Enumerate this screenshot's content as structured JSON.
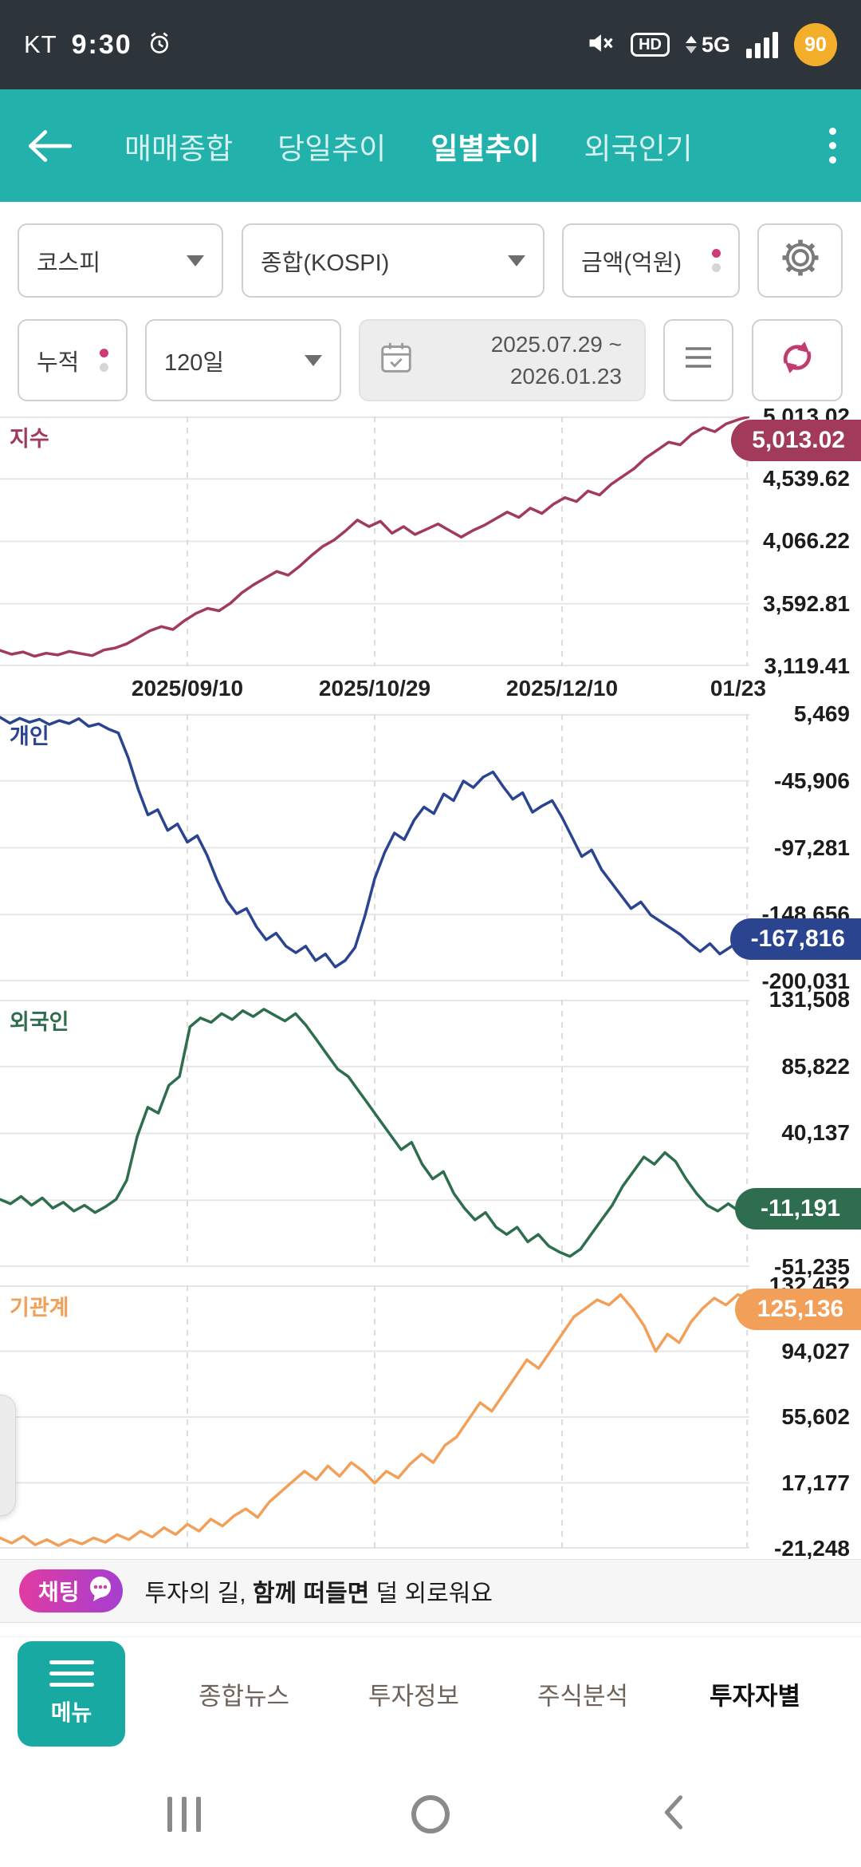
{
  "status_bar": {
    "carrier": "KT",
    "time": "9:30",
    "hd_label": "HD",
    "network_label": "5G",
    "battery": "90"
  },
  "header": {
    "tabs": [
      {
        "label": "매매종합",
        "selected": false
      },
      {
        "label": "당일추이",
        "selected": false
      },
      {
        "label": "일별추이",
        "selected": true
      },
      {
        "label": "외국인기",
        "selected": false
      }
    ]
  },
  "filters": {
    "market": "코스피",
    "index": "종합(KOSPI)",
    "value_type": "금액(억원)",
    "mode": "누적",
    "period": "120일",
    "date_start": "2025.07.29  ~",
    "date_end": "2026.01.23"
  },
  "chart_data": [
    {
      "type": "line",
      "label": "지수",
      "color": "#a23b5a",
      "badge_value": "5,013.02",
      "badge_numeric": 5013.02,
      "ylim": [
        3119.41,
        5013.02
      ],
      "yticks": [
        5013.02,
        4539.62,
        4066.22,
        3592.81,
        3119.41
      ],
      "ytick_labels": [
        "5,013.02",
        "4,539.62",
        "4,066.22",
        "3,592.81",
        "3,119.41"
      ],
      "x_labels": [
        "2025/09/10",
        "2025/10/29",
        "2025/12/10",
        "01/23"
      ],
      "values": [
        3240,
        3210,
        3228,
        3195,
        3218,
        3205,
        3232,
        3215,
        3200,
        3242,
        3258,
        3290,
        3338,
        3388,
        3420,
        3398,
        3465,
        3520,
        3558,
        3540,
        3598,
        3678,
        3738,
        3788,
        3838,
        3810,
        3878,
        3958,
        4028,
        4078,
        4148,
        4228,
        4178,
        4218,
        4128,
        4178,
        4118,
        4158,
        4198,
        4148,
        4098,
        4148,
        4188,
        4238,
        4288,
        4248,
        4318,
        4278,
        4348,
        4398,
        4368,
        4448,
        4418,
        4498,
        4558,
        4618,
        4698,
        4758,
        4818,
        4798,
        4878,
        4928,
        4898,
        4958,
        4988,
        5013.02
      ]
    },
    {
      "type": "line",
      "label": "개인",
      "color": "#2b4490",
      "badge_value": "-167,816",
      "badge_numeric": -167816,
      "ylim": [
        -200031,
        5469
      ],
      "yticks": [
        5469,
        -45906,
        -97281,
        -148656,
        -200031
      ],
      "ytick_labels": [
        "5,469",
        "-45,906",
        "-97,281",
        "-148,656",
        "-200,031"
      ],
      "values": [
        3000,
        -1500,
        2200,
        -800,
        1500,
        -2500,
        500,
        -1800,
        2000,
        -4000,
        -2000,
        -6000,
        -9000,
        -28000,
        -52000,
        -72000,
        -68000,
        -84000,
        -79000,
        -93000,
        -88000,
        -103000,
        -122000,
        -138000,
        -148000,
        -144000,
        -158000,
        -168000,
        -163000,
        -173000,
        -178000,
        -173000,
        -184000,
        -179000,
        -189000,
        -184000,
        -174000,
        -150000,
        -121000,
        -101000,
        -86000,
        -91000,
        -76000,
        -66000,
        -71000,
        -56000,
        -61000,
        -46000,
        -51000,
        -43000,
        -39000,
        -50000,
        -60000,
        -55000,
        -70000,
        -65000,
        -61000,
        -74000,
        -89000,
        -104000,
        -99000,
        -114000,
        -124000,
        -134000,
        -144000,
        -139000,
        -149000,
        -154000,
        -159000,
        -164000,
        -171000,
        -177000,
        -171000,
        -179000,
        -174000,
        -169000,
        -167816
      ]
    },
    {
      "type": "line",
      "label": "외국인",
      "color": "#2e6e4e",
      "badge_value": "-11,191",
      "badge_numeric": -11191,
      "ylim": [
        -51235,
        131508
      ],
      "yticks": [
        131508,
        85822,
        40137,
        -5549,
        -51235
      ],
      "ytick_labels": [
        "131,508",
        "85,822",
        "40,137",
        "",
        "-51,235"
      ],
      "values": [
        -5000,
        -8000,
        -3000,
        -9000,
        -4000,
        -11000,
        -7000,
        -13000,
        -9000,
        -14000,
        -10000,
        -5000,
        8000,
        38000,
        58000,
        54000,
        73000,
        79000,
        113000,
        119000,
        116000,
        122000,
        118000,
        124000,
        120000,
        125000,
        121000,
        117000,
        122000,
        114000,
        104000,
        94000,
        84000,
        79000,
        69000,
        59000,
        49000,
        39000,
        29000,
        34000,
        19000,
        9000,
        14000,
        -1000,
        -11000,
        -19000,
        -14000,
        -24000,
        -29000,
        -24000,
        -34000,
        -29000,
        -37000,
        -41000,
        -44000,
        -39000,
        -29000,
        -19000,
        -9000,
        4000,
        14000,
        24000,
        19000,
        27000,
        21000,
        9000,
        -1000,
        -9000,
        -13000,
        -8000,
        -13000,
        -11191
      ]
    },
    {
      "type": "line",
      "label": "기관계",
      "color": "#f2a059",
      "badge_value": "125,136",
      "badge_numeric": 125136,
      "ylim": [
        -21248,
        132452
      ],
      "yticks": [
        132452,
        94027,
        55602,
        17177,
        -21248
      ],
      "ytick_labels": [
        "132,452",
        "94,027",
        "55,602",
        "17,177",
        "-21,248"
      ],
      "values": [
        -15000,
        -18000,
        -14000,
        -19000,
        -16000,
        -19500,
        -16000,
        -18500,
        -15000,
        -17500,
        -13000,
        -16000,
        -11000,
        -14500,
        -9000,
        -13000,
        -7000,
        -11000,
        -4000,
        -8000,
        -2000,
        2000,
        -3000,
        6000,
        12000,
        18000,
        24000,
        19000,
        27000,
        21000,
        29000,
        24000,
        17000,
        24000,
        20000,
        28000,
        34000,
        29000,
        39000,
        44000,
        54000,
        64000,
        59000,
        69000,
        79000,
        89000,
        84000,
        94000,
        104000,
        114000,
        119000,
        124000,
        121000,
        127000,
        119000,
        109000,
        94000,
        104000,
        99000,
        111000,
        119000,
        125000,
        121000,
        127000,
        125136
      ]
    }
  ],
  "chat_banner": {
    "badge_label": "채팅",
    "text_before": "투자의 길, ",
    "text_bold": "함께 떠들면",
    "text_after": " 덜 외로워요"
  },
  "bottom_nav": {
    "menu_label": "메뉴",
    "items": [
      {
        "label": "종합뉴스",
        "selected": false
      },
      {
        "label": "투자정보",
        "selected": false
      },
      {
        "label": "주식분석",
        "selected": false
      },
      {
        "label": "투자자별",
        "selected": true
      }
    ]
  }
}
